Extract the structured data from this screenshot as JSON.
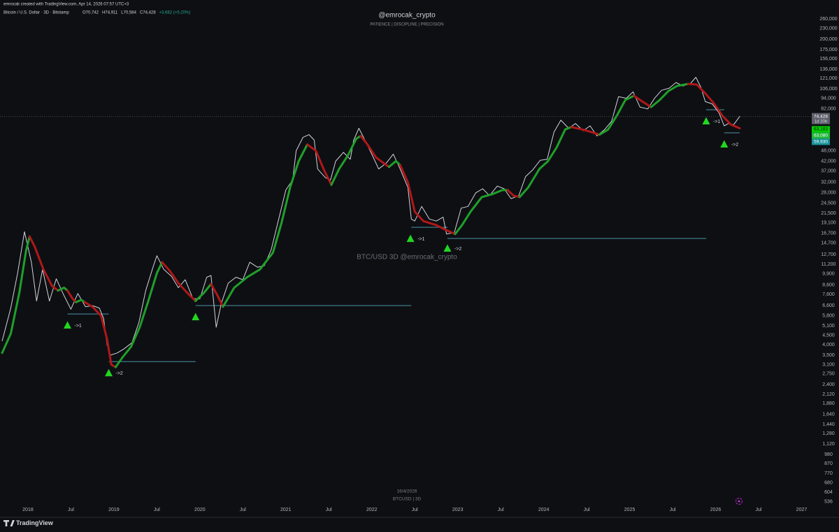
{
  "header": {
    "credit": "emrocak created with TradingView.com, Apr 14, 2026 07:57 UTC+3",
    "symbol": "Bitcoin / U.S. Dollar · 3D · Bitstamp",
    "ohlc": [
      "O70,742",
      "H74,911",
      "L70,584",
      "C74,428",
      "+3,682 (+5.20%)"
    ],
    "author": "@emrocak_crypto",
    "motto": "PATIENCE | DISCIPLINE | PRECISION",
    "watermark": "BTC/USD 3D   @emrocak_crypto"
  },
  "footer": {
    "date": "16/4/2026",
    "symbol": "BTCUSD | 3D",
    "brand": "TradingView"
  },
  "chart_data": {
    "type": "line",
    "log_scale": true,
    "grid": false,
    "xlim": [
      2017.675,
      2027.11
    ],
    "ylim": [
      524,
      331000
    ],
    "xticks": [
      2018,
      {
        "value": 2018.5,
        "label": "Jul"
      },
      2019,
      {
        "value": 2019.5,
        "label": "Jul"
      },
      2020,
      {
        "value": 2020.5,
        "label": "Jul"
      },
      2021,
      {
        "value": 2021.5,
        "label": "Jul"
      },
      2022,
      {
        "value": 2022.5,
        "label": "Jul"
      },
      2023,
      {
        "value": 2023.5,
        "label": "Jul"
      },
      2024,
      {
        "value": 2024.5,
        "label": "Jul"
      },
      2025,
      {
        "value": 2025.5,
        "label": "Jul"
      },
      2026,
      {
        "value": 2026.5,
        "label": "Jul"
      },
      2027
    ],
    "yticks": [
      {
        "value": 260000,
        "label": "260,000"
      },
      {
        "value": 230000,
        "label": "230,000"
      },
      {
        "value": 200000,
        "label": "200,000"
      },
      {
        "value": 175000,
        "label": "175,000"
      },
      {
        "value": 156000,
        "label": "156,000"
      },
      {
        "value": 136000,
        "label": "136,000"
      },
      {
        "value": 121000,
        "label": "121,000"
      },
      {
        "value": 106000,
        "label": "106,000"
      },
      {
        "value": 94000,
        "label": "94,000"
      },
      {
        "value": 82000,
        "label": "82,000"
      },
      {
        "value": 48000,
        "label": "48,000"
      },
      {
        "value": 42000,
        "label": "42,000"
      },
      {
        "value": 37000,
        "label": "37,000"
      },
      {
        "value": 32000,
        "label": "32,000"
      },
      {
        "value": 28000,
        "label": "28,000"
      },
      {
        "value": 24500,
        "label": "24,500"
      },
      {
        "value": 21500,
        "label": "21,500"
      },
      {
        "value": 19100,
        "label": "19,100"
      },
      {
        "value": 16700,
        "label": "16,700"
      },
      {
        "value": 14700,
        "label": "14,700"
      },
      {
        "value": 12700,
        "label": "12,700"
      },
      {
        "value": 11200,
        "label": "11,200"
      },
      {
        "value": 9900,
        "label": "9,900"
      },
      {
        "value": 8600,
        "label": "8,600"
      },
      {
        "value": 7600,
        "label": "7,600"
      },
      {
        "value": 6600,
        "label": "6,600"
      },
      {
        "value": 5800,
        "label": "5,800"
      },
      {
        "value": 5100,
        "label": "5,100"
      },
      {
        "value": 4500,
        "label": "4,500"
      },
      {
        "value": 4000,
        "label": "4,000"
      },
      {
        "value": 3500,
        "label": "3,500"
      },
      {
        "value": 3100,
        "label": "3,100"
      },
      {
        "value": 2750,
        "label": "2,750"
      },
      {
        "value": 2400,
        "label": "2,400"
      },
      {
        "value": 2120,
        "label": "2,120"
      },
      {
        "value": 1880,
        "label": "1,880"
      },
      {
        "value": 1640,
        "label": "1,640"
      },
      {
        "value": 1440,
        "label": "1,440"
      },
      {
        "value": 1280,
        "label": "1,280"
      },
      {
        "value": 1120,
        "label": "1,120"
      },
      980,
      870,
      770,
      680,
      604,
      536
    ],
    "series": [
      {
        "color": "#d1d4dc",
        "width": 1,
        "x": [
          2017.7,
          2017.8,
          2017.88,
          2017.96,
          2018.04,
          2018.1,
          2018.17,
          2018.25,
          2018.33,
          2018.42,
          2018.5,
          2018.58,
          2018.67,
          2018.75,
          2018.83,
          2018.88,
          2018.92,
          2018.96,
          2019.04,
          2019.12,
          2019.21,
          2019.29,
          2019.37,
          2019.46,
          2019.5,
          2019.58,
          2019.67,
          2019.75,
          2019.83,
          2019.92,
          2020.0,
          2020.08,
          2020.13,
          2020.19,
          2020.25,
          2020.33,
          2020.42,
          2020.5,
          2020.58,
          2020.67,
          2020.75,
          2020.83,
          2020.9,
          2021.0,
          2021.08,
          2021.12,
          2021.2,
          2021.27,
          2021.33,
          2021.37,
          2021.46,
          2021.52,
          2021.58,
          2021.67,
          2021.75,
          2021.79,
          2021.85,
          2021.92,
          2022.0,
          2022.08,
          2022.17,
          2022.25,
          2022.33,
          2022.42,
          2022.46,
          2022.5,
          2022.58,
          2022.67,
          2022.75,
          2022.83,
          2022.87,
          2022.96,
          2023.04,
          2023.12,
          2023.21,
          2023.29,
          2023.37,
          2023.46,
          2023.54,
          2023.62,
          2023.71,
          2023.79,
          2023.87,
          2023.96,
          2024.04,
          2024.12,
          2024.2,
          2024.29,
          2024.37,
          2024.46,
          2024.54,
          2024.62,
          2024.71,
          2024.79,
          2024.87,
          2024.96,
          2025.04,
          2025.12,
          2025.21,
          2025.29,
          2025.37,
          2025.46,
          2025.54,
          2025.62,
          2025.71,
          2025.77,
          2025.83,
          2025.88,
          2025.96,
          2026.04,
          2026.1,
          2026.15,
          2026.21,
          2026.28
        ],
        "values": [
          4200,
          6400,
          10000,
          17000,
          11500,
          7000,
          10500,
          7000,
          9300,
          7500,
          6300,
          7700,
          6500,
          6600,
          6400,
          5600,
          4000,
          3500,
          3600,
          3800,
          4100,
          5300,
          8000,
          11000,
          12500,
          10500,
          9600,
          8300,
          9200,
          7200,
          7200,
          9500,
          9700,
          5000,
          6800,
          8800,
          9500,
          9200,
          11500,
          10800,
          11000,
          13500,
          18500,
          29000,
          33000,
          48000,
          57000,
          59000,
          55000,
          38000,
          34000,
          33000,
          42000,
          47000,
          43000,
          55000,
          64000,
          55000,
          46000,
          38000,
          41000,
          46000,
          38000,
          30000,
          20000,
          19500,
          23500,
          20000,
          19500,
          20500,
          16500,
          16800,
          23000,
          23500,
          28000,
          29500,
          27000,
          30500,
          29500,
          26000,
          27000,
          34500,
          37500,
          42500,
          43000,
          61000,
          71000,
          64000,
          68000,
          62000,
          66000,
          58000,
          63000,
          70000,
          96000,
          94000,
          102000,
          84000,
          82000,
          94000,
          104000,
          107000,
          115000,
          110000,
          114000,
          123000,
          108000,
          90000,
          87500,
          78000,
          66000,
          68000,
          67000,
          74428
        ]
      },
      {
        "color": "#1fa02a",
        "width": 3,
        "x": [
          2017.7,
          2017.8,
          2017.9,
          2017.98,
          2018.02
        ],
        "values": [
          3600,
          4600,
          7800,
          13500,
          16000
        ]
      },
      {
        "color": "#b01818",
        "width": 3,
        "x": [
          2018.02,
          2018.08,
          2018.18,
          2018.28,
          2018.35
        ],
        "values": [
          16000,
          14000,
          10500,
          8500,
          8000
        ]
      },
      {
        "color": "#1fa02a",
        "width": 3,
        "x": [
          2018.35,
          2018.42,
          2018.46
        ],
        "values": [
          8000,
          8300,
          8000
        ]
      },
      {
        "color": "#b01818",
        "width": 3,
        "x": [
          2018.46,
          2018.52,
          2018.56
        ],
        "values": [
          8000,
          7200,
          6900
        ]
      },
      {
        "color": "#1fa02a",
        "width": 3,
        "x": [
          2018.56,
          2018.62,
          2018.66
        ],
        "values": [
          6900,
          7100,
          6900
        ]
      },
      {
        "color": "#b01818",
        "width": 3,
        "x": [
          2018.66,
          2018.75,
          2018.85,
          2018.92,
          2018.97,
          2019.02
        ],
        "values": [
          6900,
          6500,
          5800,
          4300,
          3100,
          3000
        ]
      },
      {
        "color": "#1fa02a",
        "width": 3,
        "x": [
          2019.02,
          2019.1,
          2019.2,
          2019.3,
          2019.4,
          2019.5,
          2019.56
        ],
        "values": [
          3000,
          3400,
          3900,
          5000,
          7000,
          10000,
          11500
        ]
      },
      {
        "color": "#b01818",
        "width": 3,
        "x": [
          2019.56,
          2019.65,
          2019.75,
          2019.85,
          2019.95
        ],
        "values": [
          11500,
          10300,
          8800,
          7800,
          7000
        ]
      },
      {
        "color": "#1fa02a",
        "width": 3,
        "x": [
          2019.95,
          2020.05,
          2020.13
        ],
        "values": [
          7000,
          7800,
          8700
        ]
      },
      {
        "color": "#b01818",
        "width": 3,
        "x": [
          2020.13,
          2020.2,
          2020.27
        ],
        "values": [
          8700,
          7600,
          6500
        ]
      },
      {
        "color": "#1fa02a",
        "width": 3,
        "x": [
          2020.27,
          2020.4,
          2020.55,
          2020.7,
          2020.85,
          2020.95,
          2021.05,
          2021.15,
          2021.25
        ],
        "values": [
          6500,
          8300,
          9500,
          10500,
          13000,
          19000,
          30000,
          42000,
          52000
        ]
      },
      {
        "color": "#b01818",
        "width": 3,
        "x": [
          2021.25,
          2021.35,
          2021.45,
          2021.53
        ],
        "values": [
          52000,
          48000,
          37000,
          31000
        ]
      },
      {
        "color": "#1fa02a",
        "width": 3,
        "x": [
          2021.53,
          2021.62,
          2021.72,
          2021.82,
          2021.87
        ],
        "values": [
          31000,
          38000,
          45000,
          56000,
          58000
        ]
      },
      {
        "color": "#b01818",
        "width": 3,
        "x": [
          2021.87,
          2021.95,
          2022.05,
          2022.2
        ],
        "values": [
          58000,
          52000,
          44000,
          39000
        ]
      },
      {
        "color": "#1fa02a",
        "width": 3,
        "x": [
          2022.2,
          2022.28,
          2022.33
        ],
        "values": [
          39000,
          42000,
          40000
        ]
      },
      {
        "color": "#b01818",
        "width": 3,
        "x": [
          2022.33,
          2022.42,
          2022.5,
          2022.6,
          2022.75,
          2022.85,
          2022.97
        ],
        "values": [
          40000,
          32000,
          22000,
          19500,
          18500,
          17500,
          16500
        ]
      },
      {
        "color": "#1fa02a",
        "width": 3,
        "x": [
          2022.97,
          2023.05,
          2023.15,
          2023.28,
          2023.4,
          2023.52,
          2023.58
        ],
        "values": [
          16500,
          18500,
          22000,
          26500,
          27500,
          29000,
          29000
        ]
      },
      {
        "color": "#b01818",
        "width": 3,
        "x": [
          2023.58,
          2023.65,
          2023.72
        ],
        "values": [
          29000,
          27000,
          26500
        ]
      },
      {
        "color": "#1fa02a",
        "width": 3,
        "x": [
          2023.72,
          2023.82,
          2023.95,
          2024.05,
          2024.15,
          2024.25,
          2024.32
        ],
        "values": [
          26500,
          30000,
          38000,
          42000,
          50000,
          63000,
          65000
        ]
      },
      {
        "color": "#b01818",
        "width": 3,
        "x": [
          2024.32,
          2024.45,
          2024.55,
          2024.65
        ],
        "values": [
          65000,
          63000,
          61000,
          59000
        ]
      },
      {
        "color": "#1fa02a",
        "width": 3,
        "x": [
          2024.65,
          2024.75,
          2024.85,
          2024.95,
          2025.05
        ],
        "values": [
          59000,
          63000,
          75000,
          92000,
          97000
        ]
      },
      {
        "color": "#b01818",
        "width": 3,
        "x": [
          2025.05,
          2025.15,
          2025.25
        ],
        "values": [
          97000,
          90000,
          84000
        ]
      },
      {
        "color": "#1fa02a",
        "width": 3,
        "x": [
          2025.25,
          2025.35,
          2025.45,
          2025.55,
          2025.68
        ],
        "values": [
          84000,
          92000,
          103000,
          110000,
          113000
        ]
      },
      {
        "color": "#b01818",
        "width": 3,
        "x": [
          2025.68,
          2025.78,
          2025.88,
          2025.98,
          2026.08,
          2026.18,
          2026.28
        ],
        "values": [
          113000,
          112000,
          100000,
          88000,
          75000,
          67000,
          64000
        ]
      }
    ],
    "levels_color": "#4a93a6",
    "levels": [
      {
        "x": [
          2018.46,
          2018.94
        ],
        "value": 5930
      },
      {
        "x": [
          2018.94,
          2019.95
        ],
        "value": 3220
      },
      {
        "x": [
          2019.95,
          2022.46
        ],
        "value": 6600
      },
      {
        "x": [
          2022.46,
          2022.88
        ],
        "value": 18000
      },
      {
        "x": [
          2022.88,
          2025.89
        ],
        "value": 15600
      },
      {
        "x": [
          2025.89,
          2026.1
        ],
        "value": 81100
      },
      {
        "x": [
          2026.1,
          2026.28
        ],
        "value": 60400
      }
    ],
    "signal_color": "#22d622",
    "signals": [
      {
        "x": 2018.46,
        "y": 5140,
        "label": "->1"
      },
      {
        "x": 2018.94,
        "y": 2790,
        "label": "->2"
      },
      {
        "x": 2019.95,
        "y": 5720
      },
      {
        "x": 2022.45,
        "y": 15600,
        "label": "->1"
      },
      {
        "x": 2022.88,
        "y": 13770,
        "label": "->2"
      },
      {
        "x": 2025.89,
        "y": 70300,
        "label": "->1"
      },
      {
        "x": 2026.1,
        "y": 52300,
        "label": "->2"
      }
    ],
    "last_price": {
      "value": 74428,
      "label": "74,428",
      "countdown": "1d 20h",
      "color": "#5d606b"
    },
    "price_labels": [
      {
        "value": 63183,
        "label": "63,183",
        "color": "#00d000"
      },
      {
        "value": 63080,
        "label": "63,080",
        "color": "#1fb83a"
      },
      {
        "value": 59930,
        "label": "59,930",
        "color": "#17929a"
      }
    ]
  }
}
